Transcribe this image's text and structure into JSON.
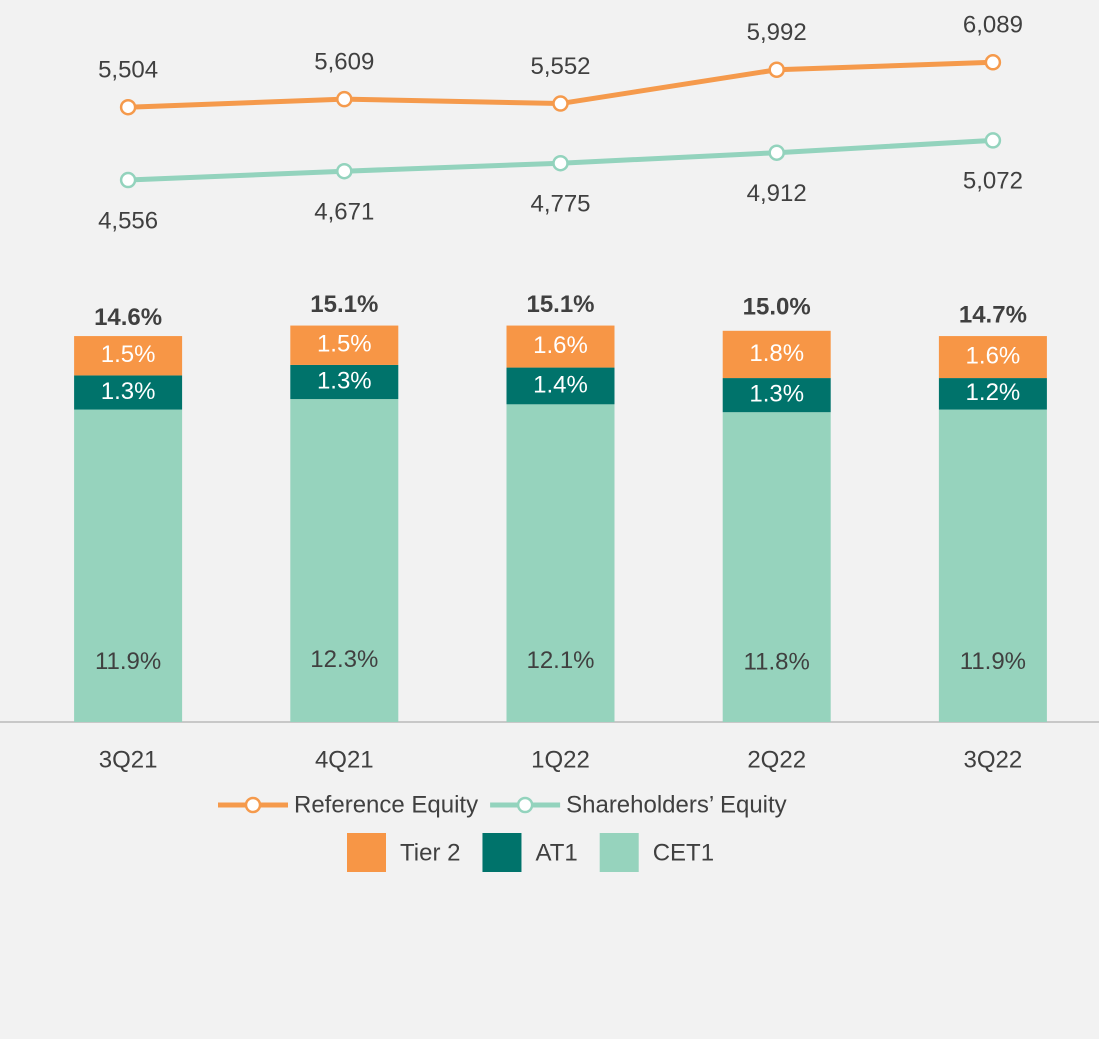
{
  "chart_data": {
    "type": "bar",
    "stacked": true,
    "categories": [
      "3Q21",
      "4Q21",
      "1Q22",
      "2Q22",
      "3Q22"
    ],
    "series": [
      {
        "name": "Reference Equity",
        "type": "line",
        "axis": "y2",
        "color": "#f59a4c",
        "values": [
          5504,
          5609,
          5552,
          5992,
          6089
        ],
        "value_labels": [
          "5,504",
          "5,609",
          "5,552",
          "5,992",
          "6,089"
        ],
        "label_side": "above"
      },
      {
        "name": "Shareholders’ Equity",
        "type": "line",
        "axis": "y2",
        "color": "#93d3bd",
        "values": [
          4556,
          4671,
          4775,
          4912,
          5072
        ],
        "value_labels": [
          "4,556",
          "4,671",
          "4,775",
          "4,912",
          "5,072"
        ],
        "label_side": "below"
      },
      {
        "name": "Tier 2",
        "color": "#f79646",
        "label_color": "#ffffff",
        "values": [
          1.5,
          1.5,
          1.6,
          1.8,
          1.6
        ],
        "value_labels": [
          "1.5%",
          "1.5%",
          "1.6%",
          "1.8%",
          "1.6%"
        ]
      },
      {
        "name": "AT1",
        "color": "#00736b",
        "label_color": "#ffffff",
        "values": [
          1.3,
          1.3,
          1.4,
          1.3,
          1.2
        ],
        "value_labels": [
          "1.3%",
          "1.3%",
          "1.4%",
          "1.3%",
          "1.2%"
        ]
      },
      {
        "name": "CET1",
        "color": "#96d3bd",
        "label_color": "#404040",
        "values": [
          11.9,
          12.3,
          12.1,
          11.8,
          11.9
        ],
        "value_labels": [
          "11.9%",
          "12.3%",
          "12.1%",
          "11.8%",
          "11.9%"
        ]
      }
    ],
    "totals": [
      14.6,
      15.1,
      15.1,
      15.0,
      14.7
    ],
    "total_labels": [
      "14.6%",
      "15.1%",
      "15.1%",
      "15.0%",
      "14.7%"
    ],
    "ylim": [
      0,
      27.5
    ],
    "y2lim": [
      -2500,
      6900
    ]
  }
}
